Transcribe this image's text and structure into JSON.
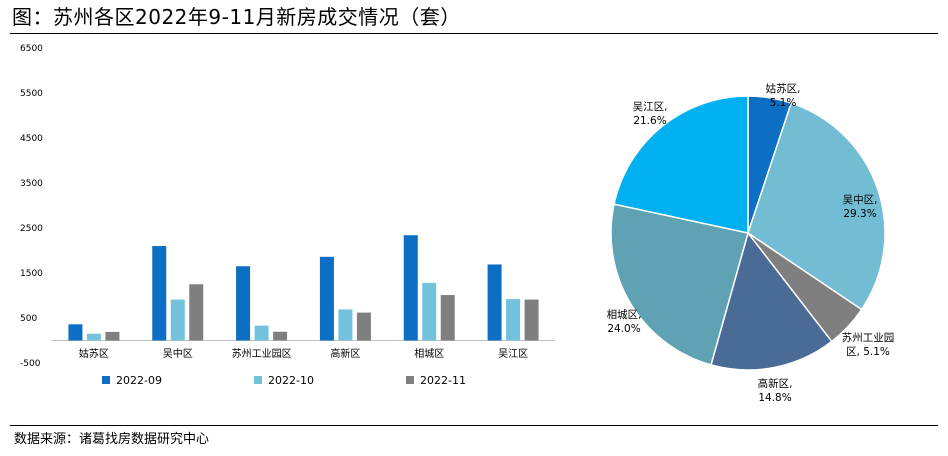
{
  "title": "图：苏州各区2022年9-11月新房成交情况（套）",
  "source": "数据来源：诸葛找房数据研究中心",
  "chart_data": [
    {
      "type": "bar",
      "categories": [
        "姑苏区",
        "吴中区",
        "苏州工业园区",
        "高新区",
        "相城区",
        "吴江区"
      ],
      "yticks": [
        "-500",
        "500",
        "1500",
        "2500",
        "3500",
        "4500",
        "5500",
        "6500"
      ],
      "ylim": [
        -500,
        6500
      ],
      "series": [
        {
          "name": "2022-09",
          "color": "#0c6fc4",
          "values": [
            360,
            2100,
            1650,
            1860,
            2340,
            1690
          ]
        },
        {
          "name": "2022-10",
          "color": "#72c2dd",
          "values": [
            150,
            910,
            330,
            690,
            1280,
            920
          ]
        },
        {
          "name": "2022-11",
          "color": "#7f7f7f",
          "values": [
            190,
            1250,
            195,
            620,
            1010,
            910
          ]
        }
      ],
      "legend_position": "bottom"
    },
    {
      "type": "pie",
      "slices": [
        {
          "label": "姑苏区,",
          "pct_label": "5.1%",
          "value": 5.1,
          "color": "#0c6fc4"
        },
        {
          "label": "吴中区,",
          "pct_label": "29.3%",
          "value": 29.3,
          "color": "#72bcd4"
        },
        {
          "label": "苏州工业园",
          "label2": "区, 5.1%",
          "value": 5.1,
          "color": "#7f7f7f"
        },
        {
          "label": "高新区,",
          "pct_label": "14.8%",
          "value": 14.8,
          "color": "#4a6b95"
        },
        {
          "label": "相城区,",
          "pct_label": "24.0%",
          "value": 24.0,
          "color": "#5ea2b4"
        },
        {
          "label": "吴江区,",
          "pct_label": "21.6%",
          "value": 21.6,
          "color": "#00b0f0"
        }
      ]
    }
  ]
}
